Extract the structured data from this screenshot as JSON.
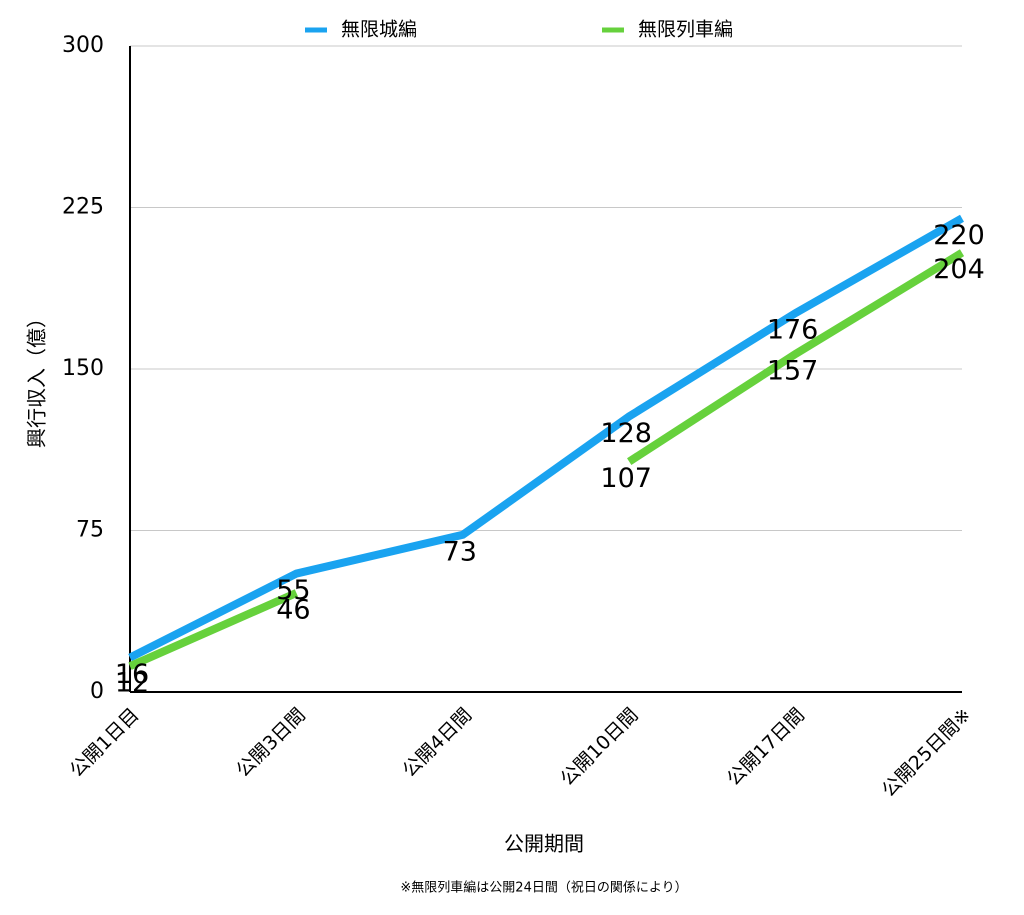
{
  "chart_data": {
    "type": "line",
    "x_label": "公開期間",
    "y_label": "興行収入（億）",
    "footnote": "※無限列車編は公開24日間（祝日の関係により）",
    "categories": [
      "公開1日目",
      "公開3日間",
      "公開4日間",
      "公開10日間",
      "公開17日間",
      "公開25日間※"
    ],
    "series": [
      {
        "name": "無限城編",
        "color": "#1aa3f0",
        "values": [
          16,
          55,
          73,
          128,
          176,
          220
        ]
      },
      {
        "name": "無限列車編",
        "color": "#66d13c",
        "values": [
          12,
          46,
          null,
          107,
          157,
          204
        ]
      }
    ],
    "ylim": [
      0,
      300
    ],
    "yticks": [
      0,
      75,
      150,
      225,
      300
    ],
    "grid": true,
    "data_labels": true
  }
}
